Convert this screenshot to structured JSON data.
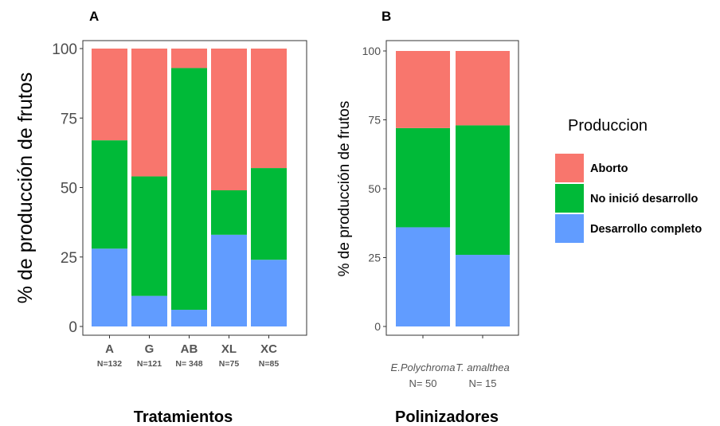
{
  "legend": {
    "title": "Produccion",
    "entries": [
      {
        "key": "aborto",
        "label": "Aborto",
        "color": "#F8766D"
      },
      {
        "key": "no_inicio",
        "label": "No inició desarrollo",
        "color": "#00BA38"
      },
      {
        "key": "completo",
        "label": "Desarrollo completo",
        "color": "#619CFF"
      }
    ]
  },
  "chart_data": [
    {
      "type": "bar",
      "stacked": true,
      "panel": "A",
      "ylabel": "% de producción de frutos",
      "xlabel": "Tratamientos",
      "ylim": [
        0,
        100
      ],
      "yticks": [
        0,
        25,
        50,
        75,
        100
      ],
      "categories": [
        "A",
        "G",
        "AB",
        "XL",
        "XC"
      ],
      "sublabels": [
        "N=132",
        "N=121",
        "N= 348",
        "N=75",
        "N=85"
      ],
      "series": [
        {
          "name": "Desarrollo completo",
          "values": [
            28,
            11,
            6,
            33,
            24
          ]
        },
        {
          "name": "No inició desarrollo",
          "values": [
            39,
            43,
            87,
            16,
            33
          ]
        },
        {
          "name": "Aborto",
          "values": [
            33,
            46,
            7,
            51,
            43
          ]
        }
      ]
    },
    {
      "type": "bar",
      "stacked": true,
      "panel": "B",
      "ylabel": "% de producción de frutos",
      "xlabel": "Polinizadores",
      "ylim": [
        0,
        100
      ],
      "yticks": [
        0,
        25,
        50,
        75,
        100
      ],
      "categories": [
        "E.Polychroma",
        "T. amalthea"
      ],
      "sublabels": [
        "N= 50",
        "N= 15"
      ],
      "series": [
        {
          "name": "Desarrollo completo",
          "values": [
            36,
            26
          ]
        },
        {
          "name": "No inició desarrollo",
          "values": [
            36,
            47
          ]
        },
        {
          "name": "Aborto",
          "values": [
            28,
            27
          ]
        }
      ]
    }
  ]
}
